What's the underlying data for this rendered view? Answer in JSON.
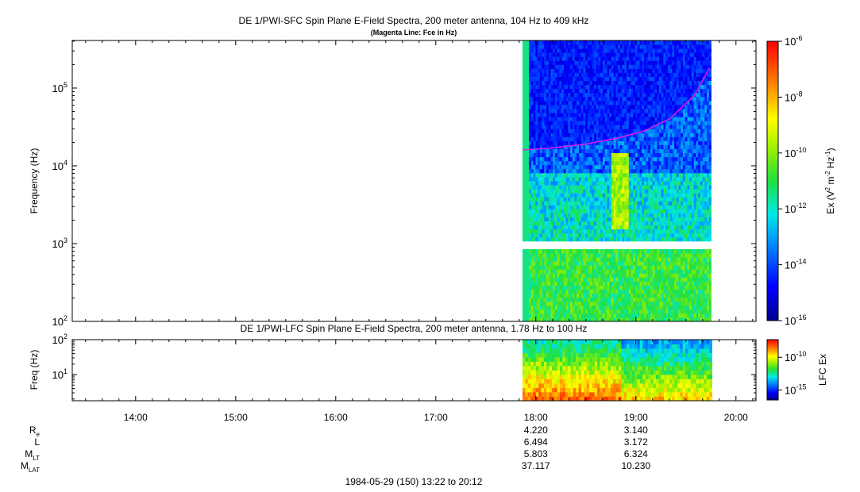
{
  "chart_data": [
    {
      "type": "heatmap",
      "title": "DE 1/PWI-SFC  Spin Plane E-Field Spectra, 200 meter antenna, 104 Hz to 409 kHz",
      "subtitle": "(Magenta Line: Fce in Hz)",
      "ylabel": "Frequency (Hz)",
      "yscale": "log",
      "ylim": [
        100,
        409000
      ],
      "yticks": [
        {
          "value": 100,
          "base": "10",
          "exp": "2"
        },
        {
          "value": 1000,
          "base": "10",
          "exp": "3"
        },
        {
          "value": 10000,
          "base": "10",
          "exp": "4"
        },
        {
          "value": 100000,
          "base": "10",
          "exp": "5"
        }
      ],
      "xlim": [
        "13:22",
        "20:12"
      ],
      "data_time_range": [
        "17:52",
        "19:44"
      ],
      "data_gap_hz": [
        900,
        1050
      ],
      "colorbar": {
        "label": "Ex (V² m⁻² Hz⁻¹)",
        "label_parts": [
          "Ex (V",
          "2",
          " m",
          "-2",
          " Hz",
          "-1",
          ")"
        ],
        "scale": "log",
        "range": [
          1e-16,
          1e-06
        ],
        "ticks": [
          {
            "value": 1e-06,
            "base": "10",
            "exp": "-6"
          },
          {
            "value": 1e-08,
            "base": "10",
            "exp": "-8"
          },
          {
            "value": 1e-10,
            "base": "10",
            "exp": "-10"
          },
          {
            "value": 1e-12,
            "base": "10",
            "exp": "-12"
          },
          {
            "value": 1e-14,
            "base": "10",
            "exp": "-14"
          },
          {
            "value": 1e-16,
            "base": "10",
            "exp": "-16"
          }
        ]
      },
      "overlay_line": {
        "name": "Fce",
        "color": "#e020e0",
        "points": [
          [
            "17:52",
            16000
          ],
          [
            "18:10",
            17000
          ],
          [
            "18:30",
            19000
          ],
          [
            "18:50",
            23000
          ],
          [
            "19:05",
            28000
          ],
          [
            "19:20",
            40000
          ],
          [
            "19:35",
            80000
          ],
          [
            "19:44",
            180000
          ]
        ]
      }
    },
    {
      "type": "heatmap",
      "title": "DE 1/PWI-LFC  Spin Plane E-Field Spectra, 200 meter antenna, 1.78 Hz to 100 Hz",
      "ylabel": "Freq (Hz)",
      "yscale": "log",
      "ylim": [
        1.78,
        100
      ],
      "yticks": [
        {
          "value": 10,
          "base": "10",
          "exp": "1"
        },
        {
          "value": 100,
          "base": "10",
          "exp": "2"
        }
      ],
      "xlim": [
        "13:22",
        "20:12"
      ],
      "data_time_range": [
        "17:52",
        "19:44"
      ],
      "colorbar": {
        "label": "LFC Ex",
        "scale": "log",
        "range": [
          3e-17,
          5e-08
        ],
        "ticks": [
          {
            "value": 1e-10,
            "base": "10",
            "exp": "-10"
          },
          {
            "value": 1e-15,
            "base": "10",
            "exp": "-15"
          }
        ]
      }
    }
  ],
  "time_axis": {
    "ticks": [
      "14:00",
      "15:00",
      "16:00",
      "17:00",
      "18:00",
      "19:00",
      "20:00"
    ],
    "footer": "1984-05-29 (150) 13:22 to 20:12"
  },
  "ephemeris": [
    {
      "label": "R",
      "sub": "e",
      "values": [
        "4.220",
        "3.140"
      ]
    },
    {
      "label": "L",
      "sub": "",
      "values": [
        "6.494",
        "3.172"
      ]
    },
    {
      "label": "M",
      "sub": "LT",
      "values": [
        "5.803",
        "6.324"
      ]
    },
    {
      "label": "M",
      "sub": "LAT",
      "values": [
        "37.117",
        "10.230"
      ]
    }
  ],
  "ephemeris_times": [
    "18:00",
    "19:00"
  ]
}
